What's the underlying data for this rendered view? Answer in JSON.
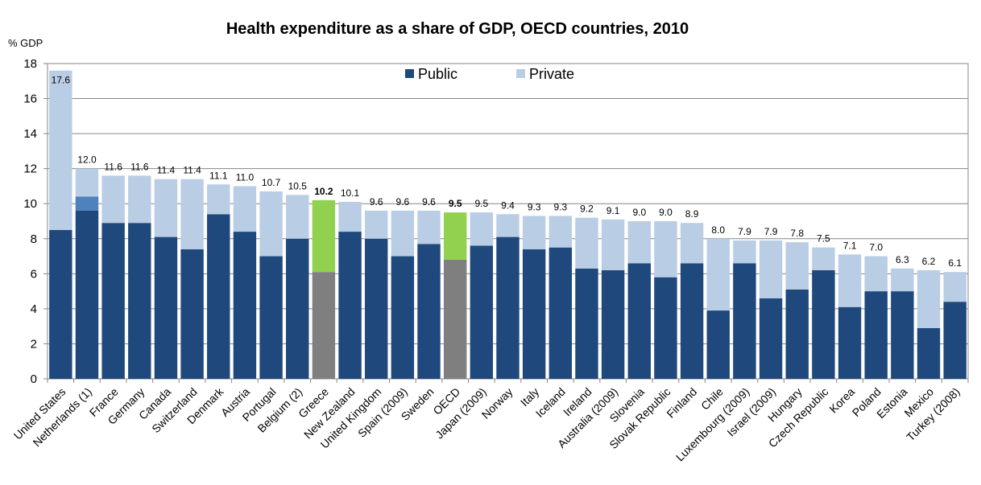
{
  "chart_data": {
    "type": "bar",
    "stacked": true,
    "title": "Health expenditure as a share of GDP, OECD countries, 2010",
    "ylabel": "% GDP",
    "xlabel": "",
    "ylim": [
      0,
      18
    ],
    "yticks": [
      0,
      2,
      4,
      6,
      8,
      10,
      12,
      14,
      16,
      18
    ],
    "grid": true,
    "legend_position": "top-center",
    "colors": {
      "public": "#1f497d",
      "private": "#b9cde5",
      "highlight_public": "#7f7f7f",
      "highlight_private": "#92d050",
      "netherlands_extra": "#4f81bd"
    },
    "categories": [
      "United States",
      "Netherlands (1)",
      "France",
      "Germany",
      "Canada",
      "Switzerland",
      "Denmark",
      "Austria",
      "Portugal",
      "Belgium (2)",
      "Greece",
      "New Zealand",
      "United Kingdom",
      "Spain (2009)",
      "Sweden",
      "OECD",
      "Japan (2009)",
      "Norway",
      "Italy",
      "Iceland",
      "Ireland",
      "Australia (2009)",
      "Slovenia",
      "Slovak Republic",
      "Finland",
      "Chile",
      "Luxembourg (2009)",
      "Israel (2009)",
      "Hungary",
      "Czech Republic",
      "Korea",
      "Poland",
      "Estonia",
      "Mexico",
      "Turkey (2008)"
    ],
    "series": [
      {
        "name": "Public",
        "values": [
          8.5,
          9.6,
          8.9,
          8.9,
          8.1,
          7.4,
          9.4,
          8.4,
          7.0,
          8.0,
          6.1,
          8.4,
          8.0,
          7.0,
          7.7,
          6.8,
          7.6,
          8.1,
          7.4,
          7.5,
          6.3,
          6.2,
          6.6,
          5.8,
          6.6,
          3.9,
          6.6,
          4.6,
          5.1,
          6.2,
          4.1,
          5.0,
          5.0,
          2.9,
          4.4
        ]
      },
      {
        "name": "Private",
        "values": [
          9.1,
          2.4,
          2.7,
          2.7,
          3.3,
          4.0,
          1.7,
          2.6,
          3.7,
          2.5,
          4.1,
          1.7,
          1.6,
          2.6,
          1.9,
          2.7,
          1.9,
          1.3,
          1.9,
          1.8,
          2.9,
          2.9,
          2.4,
          3.2,
          2.3,
          4.1,
          1.3,
          3.3,
          2.7,
          1.3,
          3.0,
          2.0,
          1.3,
          3.3,
          1.7
        ]
      }
    ],
    "totals": [
      17.6,
      12.0,
      11.6,
      11.6,
      11.4,
      11.4,
      11.1,
      11.0,
      10.7,
      10.5,
      10.2,
      10.1,
      9.6,
      9.6,
      9.6,
      9.5,
      9.5,
      9.4,
      9.3,
      9.3,
      9.2,
      9.1,
      9.0,
      9.0,
      8.9,
      8.0,
      7.9,
      7.9,
      7.8,
      7.5,
      7.1,
      7.0,
      6.3,
      6.2,
      6.1
    ],
    "total_labels": [
      "17.6",
      "12.0",
      "11.6",
      "11.6",
      "11.4",
      "11.4",
      "11.1",
      "11.0",
      "10.7",
      "10.5",
      "10.2",
      "10.1",
      "9.6",
      "9.6",
      "9.6",
      "9.5",
      "9.5",
      "9.4",
      "9.3",
      "9.3",
      "9.2",
      "9.1",
      "9.0",
      "9.0",
      "8.9",
      "8.0",
      "7.9",
      "7.9",
      "7.8",
      "7.5",
      "7.1",
      "7.0",
      "6.3",
      "6.2",
      "6.1"
    ],
    "highlighted": [
      "Greece",
      "OECD"
    ],
    "netherlands_extra_segment": {
      "category": "Netherlands (1)",
      "from": 9.6,
      "to": 10.4
    }
  }
}
